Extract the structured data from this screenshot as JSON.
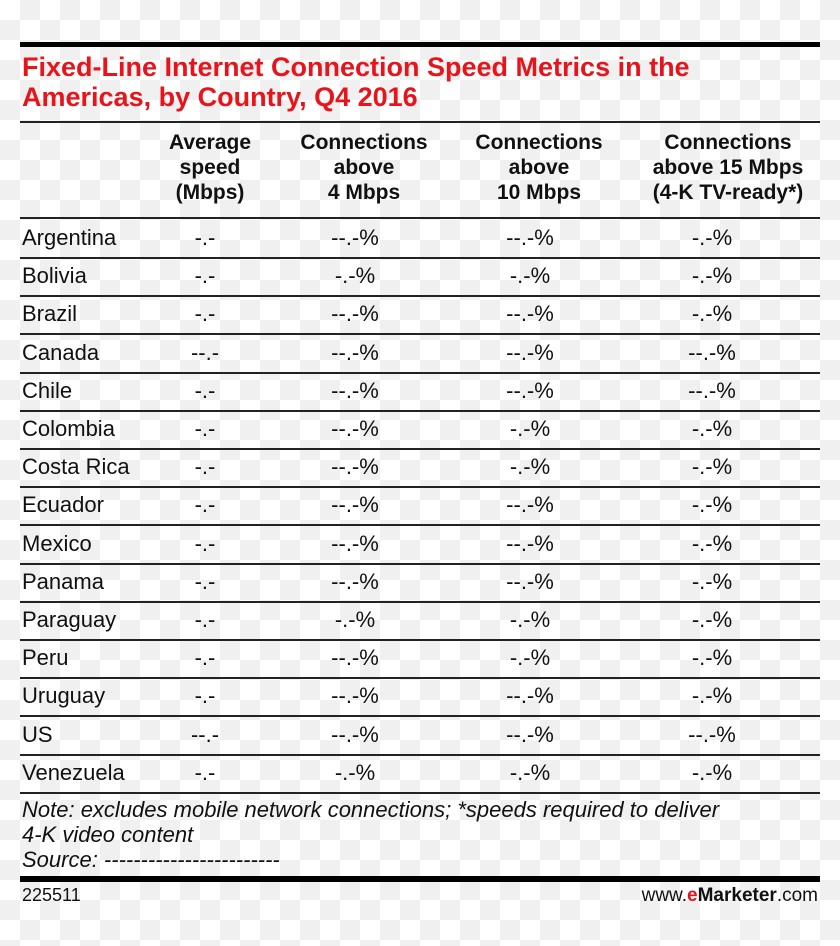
{
  "title": "Fixed-Line Internet Connection Speed Metrics in the Americas, by Country, Q4 2016",
  "chart_data": {
    "type": "table",
    "title": "Fixed-Line Internet Connection Speed Metrics in the Americas, by Country, Q4 2016",
    "columns": [
      "",
      "Average speed (Mbps)",
      "Connections above 4 Mbps",
      "Connections above 10 Mbps",
      "Connections above 15 Mbps (4-K TV-ready*)"
    ],
    "rows": [
      {
        "country": "Argentina",
        "values": [
          "-.-",
          "--.-%",
          "--.-%",
          "-.-%"
        ]
      },
      {
        "country": "Bolivia",
        "values": [
          "-.-",
          "-.-%",
          "-.-%",
          "-.-%"
        ]
      },
      {
        "country": "Brazil",
        "values": [
          "-.-",
          "--.-%",
          "--.-%",
          "-.-%"
        ]
      },
      {
        "country": "Canada",
        "values": [
          "--.-",
          "--.-%",
          "--.-%",
          "--.-%"
        ]
      },
      {
        "country": "Chile",
        "values": [
          "-.-",
          "--.-%",
          "--.-%",
          "--.-%"
        ]
      },
      {
        "country": "Colombia",
        "values": [
          "-.-",
          "--.-%",
          "-.-%",
          "-.-%"
        ]
      },
      {
        "country": "Costa Rica",
        "values": [
          "-.-",
          "--.-%",
          "-.-%",
          "-.-%"
        ]
      },
      {
        "country": "Ecuador",
        "values": [
          "-.-",
          "--.-%",
          "--.-%",
          "-.-%"
        ]
      },
      {
        "country": "Mexico",
        "values": [
          "-.-",
          "--.-%",
          "--.-%",
          "-.-%"
        ]
      },
      {
        "country": "Panama",
        "values": [
          "-.-",
          "--.-%",
          "--.-%",
          "-.-%"
        ]
      },
      {
        "country": "Paraguay",
        "values": [
          "-.-",
          "-.-%",
          "-.-%",
          "-.-%"
        ]
      },
      {
        "country": "Peru",
        "values": [
          "-.-",
          "--.-%",
          "-.-%",
          "-.-%"
        ]
      },
      {
        "country": "Uruguay",
        "values": [
          "-.-",
          "--.-%",
          "--.-%",
          "-.-%"
        ]
      },
      {
        "country": "US",
        "values": [
          "--.-",
          "--.-%",
          "--.-%",
          "--.-%"
        ]
      },
      {
        "country": "Venezuela",
        "values": [
          "-.-",
          "-.-%",
          "-.-%",
          "-.-%"
        ]
      }
    ]
  },
  "headers": [
    [
      "Average",
      "speed",
      "(Mbps)"
    ],
    [
      "Connections",
      "above",
      "4 Mbps"
    ],
    [
      "Connections",
      "above",
      "10 Mbps"
    ],
    [
      "Connections",
      "above 15 Mbps",
      "(4-K TV-ready*)"
    ]
  ],
  "note_line1": "Note: excludes mobile network connections; *speeds required to deliver",
  "note_line2": "4-K video content",
  "source": "Source: ------------------------",
  "footer_id": "225511",
  "brand": {
    "prefix": "www.",
    "e": "e",
    "name": "Marketer",
    ".com": ".com"
  },
  "colors": {
    "title": "#e8141b",
    "rules": "#000000"
  }
}
